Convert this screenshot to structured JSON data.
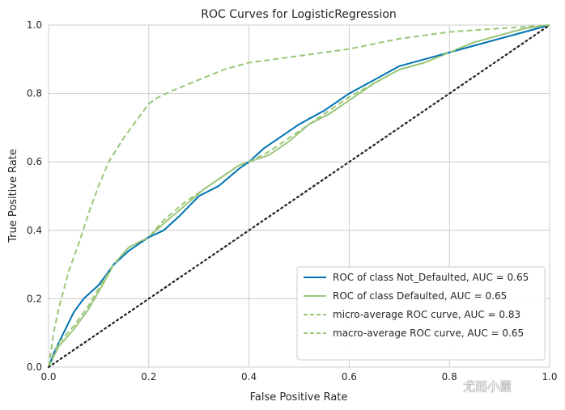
{
  "chart_data": {
    "type": "line",
    "title": "ROC Curves for LogisticRegression",
    "xlabel": "False Positive Rate",
    "ylabel": "True Positive Rate",
    "xlim": [
      0,
      1
    ],
    "ylim": [
      0,
      1
    ],
    "xticks": [
      "0.0",
      "0.2",
      "0.4",
      "0.6",
      "0.8",
      "1.0"
    ],
    "yticks": [
      "0.0",
      "0.2",
      "0.4",
      "0.6",
      "0.8",
      "1.0"
    ],
    "grid": true,
    "legend_position": "bottom-right",
    "series": [
      {
        "name": "ROC of class Not_Defaulted, AUC = 0.65",
        "color": "#0072b2",
        "style": "solid",
        "x": [
          0,
          0.01,
          0.03,
          0.05,
          0.07,
          0.1,
          0.13,
          0.16,
          0.2,
          0.23,
          0.26,
          0.3,
          0.34,
          0.38,
          0.4,
          0.43,
          0.47,
          0.5,
          0.55,
          0.6,
          0.65,
          0.7,
          0.75,
          0.8,
          0.85,
          0.9,
          0.95,
          1.0
        ],
        "y": [
          0,
          0.04,
          0.1,
          0.16,
          0.2,
          0.24,
          0.3,
          0.34,
          0.38,
          0.4,
          0.44,
          0.5,
          0.53,
          0.58,
          0.6,
          0.64,
          0.68,
          0.71,
          0.75,
          0.8,
          0.84,
          0.88,
          0.9,
          0.92,
          0.94,
          0.96,
          0.98,
          1.0
        ]
      },
      {
        "name": "ROC of class Defaulted, AUC = 0.65",
        "color": "#9bc67a",
        "style": "solid",
        "x": [
          0,
          0.02,
          0.05,
          0.08,
          0.1,
          0.13,
          0.16,
          0.2,
          0.23,
          0.27,
          0.31,
          0.35,
          0.38,
          0.4,
          0.44,
          0.48,
          0.52,
          0.56,
          0.6,
          0.65,
          0.7,
          0.75,
          0.8,
          0.85,
          0.9,
          0.95,
          1.0
        ],
        "y": [
          0,
          0.06,
          0.11,
          0.17,
          0.22,
          0.3,
          0.35,
          0.38,
          0.42,
          0.47,
          0.52,
          0.56,
          0.59,
          0.6,
          0.62,
          0.66,
          0.71,
          0.74,
          0.78,
          0.83,
          0.87,
          0.89,
          0.92,
          0.95,
          0.97,
          0.99,
          1.0
        ]
      },
      {
        "name": "micro-average ROC curve, AUC = 0.83",
        "color": "#9bc67a",
        "style": "dashed",
        "x": [
          0,
          0.01,
          0.02,
          0.04,
          0.06,
          0.08,
          0.1,
          0.12,
          0.15,
          0.18,
          0.2,
          0.22,
          0.25,
          0.3,
          0.35,
          0.4,
          0.5,
          0.6,
          0.7,
          0.8,
          0.9,
          1.0
        ],
        "y": [
          0,
          0.1,
          0.17,
          0.28,
          0.36,
          0.45,
          0.53,
          0.6,
          0.67,
          0.73,
          0.77,
          0.79,
          0.81,
          0.84,
          0.87,
          0.89,
          0.91,
          0.93,
          0.96,
          0.98,
          0.99,
          1.0
        ]
      },
      {
        "name": "macro-average ROC curve, AUC = 0.65",
        "color": "#9bc67a",
        "style": "dashed",
        "x": [
          0,
          0.02,
          0.05,
          0.08,
          0.1,
          0.13,
          0.16,
          0.2,
          0.23,
          0.27,
          0.31,
          0.35,
          0.38,
          0.4,
          0.44,
          0.48,
          0.52,
          0.56,
          0.6,
          0.65,
          0.7,
          0.75,
          0.8,
          0.85,
          0.9,
          0.95,
          1.0
        ],
        "y": [
          0,
          0.07,
          0.12,
          0.18,
          0.23,
          0.3,
          0.35,
          0.38,
          0.43,
          0.48,
          0.52,
          0.56,
          0.59,
          0.6,
          0.63,
          0.67,
          0.71,
          0.75,
          0.79,
          0.83,
          0.87,
          0.89,
          0.92,
          0.95,
          0.97,
          0.99,
          1.0
        ]
      }
    ],
    "reference_line": {
      "x": [
        0,
        1
      ],
      "y": [
        0,
        1
      ],
      "color": "#222222",
      "style": "dotted"
    }
  },
  "watermark": "尤而小屋"
}
